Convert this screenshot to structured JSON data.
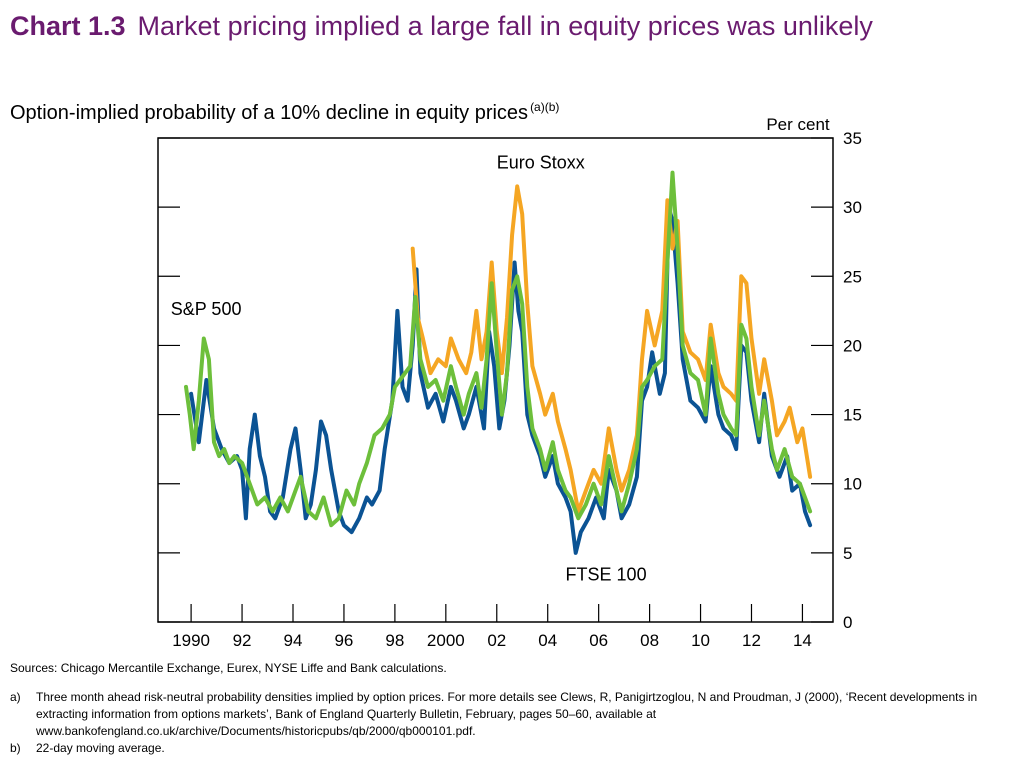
{
  "title": {
    "number": "Chart 1.3",
    "text": "Market pricing implied a large fall in equity prices was unlikely"
  },
  "subtitle": {
    "text": "Option-implied probability of a 10% decline in equity prices",
    "superscript": "(a)(b)"
  },
  "chart_data": {
    "type": "line",
    "ylabel": "Per cent",
    "ylim": [
      0,
      35
    ],
    "y_ticks": [
      "0",
      "5",
      "10",
      "15",
      "20",
      "25",
      "30",
      "35"
    ],
    "xlim": [
      1988.7,
      2015.2
    ],
    "x_ticks": [
      {
        "year": 1990,
        "label": "1990"
      },
      {
        "year": 1992,
        "label": "92"
      },
      {
        "year": 1994,
        "label": "94"
      },
      {
        "year": 1996,
        "label": "96"
      },
      {
        "year": 1998,
        "label": "98"
      },
      {
        "year": 2000,
        "label": "2000"
      },
      {
        "year": 2002,
        "label": "02"
      },
      {
        "year": 2004,
        "label": "04"
      },
      {
        "year": 2006,
        "label": "06"
      },
      {
        "year": 2008,
        "label": "08"
      },
      {
        "year": 2010,
        "label": "10"
      },
      {
        "year": 2012,
        "label": "12"
      },
      {
        "year": 2014,
        "label": "14"
      }
    ],
    "y_axis_side": "right",
    "grid": false,
    "series": [
      {
        "name": "FTSE 100",
        "color": "#0b5394",
        "points": [
          [
            1990.0,
            16.5
          ],
          [
            1990.3,
            13.0
          ],
          [
            1990.6,
            17.5
          ],
          [
            1990.9,
            14.0
          ],
          [
            1991.2,
            12.5
          ],
          [
            1991.5,
            11.5
          ],
          [
            1991.8,
            12.0
          ],
          [
            1992.0,
            11.0
          ],
          [
            1992.15,
            7.5
          ],
          [
            1992.3,
            12.5
          ],
          [
            1992.5,
            15.0
          ],
          [
            1992.7,
            12.0
          ],
          [
            1992.9,
            10.5
          ],
          [
            1993.1,
            8.0
          ],
          [
            1993.3,
            7.5
          ],
          [
            1993.6,
            9.0
          ],
          [
            1993.9,
            12.5
          ],
          [
            1994.1,
            14.0
          ],
          [
            1994.3,
            11.0
          ],
          [
            1994.5,
            7.5
          ],
          [
            1994.7,
            8.5
          ],
          [
            1994.9,
            11.0
          ],
          [
            1995.1,
            14.5
          ],
          [
            1995.3,
            13.5
          ],
          [
            1995.5,
            11.0
          ],
          [
            1995.8,
            8.0
          ],
          [
            1996.0,
            7.0
          ],
          [
            1996.3,
            6.5
          ],
          [
            1996.6,
            7.5
          ],
          [
            1996.9,
            9.0
          ],
          [
            1997.1,
            8.5
          ],
          [
            1997.4,
            9.5
          ],
          [
            1997.6,
            12.5
          ],
          [
            1997.9,
            16.0
          ],
          [
            1998.1,
            22.5
          ],
          [
            1998.3,
            17.0
          ],
          [
            1998.5,
            16.0
          ],
          [
            1998.7,
            20.0
          ],
          [
            1998.85,
            25.5
          ],
          [
            1999.0,
            18.0
          ],
          [
            1999.3,
            15.5
          ],
          [
            1999.6,
            16.5
          ],
          [
            1999.9,
            14.5
          ],
          [
            2000.2,
            17.0
          ],
          [
            2000.4,
            16.0
          ],
          [
            2000.7,
            14.0
          ],
          [
            2000.9,
            15.0
          ],
          [
            2001.2,
            17.0
          ],
          [
            2001.5,
            14.0
          ],
          [
            2001.7,
            21.0
          ],
          [
            2001.9,
            18.5
          ],
          [
            2002.1,
            14.0
          ],
          [
            2002.3,
            16.0
          ],
          [
            2002.5,
            20.0
          ],
          [
            2002.7,
            26.0
          ],
          [
            2002.85,
            22.5
          ],
          [
            2003.0,
            21.0
          ],
          [
            2003.2,
            15.0
          ],
          [
            2003.4,
            13.5
          ],
          [
            2003.7,
            12.0
          ],
          [
            2003.9,
            10.5
          ],
          [
            2004.2,
            12.0
          ],
          [
            2004.4,
            10.0
          ],
          [
            2004.7,
            9.0
          ],
          [
            2004.9,
            8.0
          ],
          [
            2005.1,
            5.0
          ],
          [
            2005.3,
            6.5
          ],
          [
            2005.6,
            7.5
          ],
          [
            2005.9,
            9.0
          ],
          [
            2006.2,
            7.5
          ],
          [
            2006.4,
            11.0
          ],
          [
            2006.7,
            9.5
          ],
          [
            2006.9,
            7.5
          ],
          [
            2007.2,
            8.5
          ],
          [
            2007.5,
            10.5
          ],
          [
            2007.7,
            16.0
          ],
          [
            2007.9,
            17.0
          ],
          [
            2008.1,
            19.5
          ],
          [
            2008.4,
            16.5
          ],
          [
            2008.6,
            18.0
          ],
          [
            2008.75,
            30.0
          ],
          [
            2008.9,
            29.0
          ],
          [
            2009.1,
            24.5
          ],
          [
            2009.3,
            19.0
          ],
          [
            2009.6,
            16.0
          ],
          [
            2009.9,
            15.5
          ],
          [
            2010.2,
            14.5
          ],
          [
            2010.4,
            18.5
          ],
          [
            2010.7,
            15.0
          ],
          [
            2010.9,
            14.0
          ],
          [
            2011.2,
            13.5
          ],
          [
            2011.4,
            12.5
          ],
          [
            2011.6,
            20.0
          ],
          [
            2011.8,
            19.5
          ],
          [
            2012.0,
            16.0
          ],
          [
            2012.3,
            13.0
          ],
          [
            2012.5,
            16.5
          ],
          [
            2012.8,
            12.0
          ],
          [
            2013.1,
            10.5
          ],
          [
            2013.4,
            12.0
          ],
          [
            2013.6,
            9.5
          ],
          [
            2013.9,
            10.0
          ],
          [
            2014.1,
            8.0
          ],
          [
            2014.3,
            7.0
          ]
        ]
      },
      {
        "name": "Euro Stoxx",
        "color": "#f5a623",
        "points": [
          [
            1998.7,
            27.0
          ],
          [
            1998.9,
            22.0
          ],
          [
            1999.1,
            20.5
          ],
          [
            1999.4,
            18.0
          ],
          [
            1999.7,
            19.0
          ],
          [
            2000.0,
            18.5
          ],
          [
            2000.2,
            20.5
          ],
          [
            2000.5,
            19.0
          ],
          [
            2000.8,
            18.0
          ],
          [
            2001.0,
            19.5
          ],
          [
            2001.2,
            22.5
          ],
          [
            2001.4,
            19.0
          ],
          [
            2001.6,
            21.0
          ],
          [
            2001.8,
            26.0
          ],
          [
            2002.0,
            21.0
          ],
          [
            2002.2,
            18.0
          ],
          [
            2002.4,
            22.0
          ],
          [
            2002.6,
            28.0
          ],
          [
            2002.8,
            31.5
          ],
          [
            2003.0,
            29.5
          ],
          [
            2003.2,
            23.0
          ],
          [
            2003.4,
            18.5
          ],
          [
            2003.7,
            16.5
          ],
          [
            2003.9,
            15.0
          ],
          [
            2004.2,
            16.5
          ],
          [
            2004.4,
            14.5
          ],
          [
            2004.7,
            12.5
          ],
          [
            2004.9,
            11.0
          ],
          [
            2005.2,
            8.0
          ],
          [
            2005.5,
            9.5
          ],
          [
            2005.8,
            11.0
          ],
          [
            2006.1,
            10.0
          ],
          [
            2006.4,
            14.0
          ],
          [
            2006.7,
            11.0
          ],
          [
            2006.9,
            9.5
          ],
          [
            2007.2,
            11.0
          ],
          [
            2007.5,
            13.5
          ],
          [
            2007.7,
            19.0
          ],
          [
            2007.9,
            22.5
          ],
          [
            2008.2,
            20.0
          ],
          [
            2008.5,
            22.5
          ],
          [
            2008.7,
            30.5
          ],
          [
            2008.9,
            27.0
          ],
          [
            2009.1,
            29.0
          ],
          [
            2009.3,
            21.0
          ],
          [
            2009.6,
            19.5
          ],
          [
            2009.9,
            19.0
          ],
          [
            2010.2,
            17.5
          ],
          [
            2010.4,
            21.5
          ],
          [
            2010.7,
            18.0
          ],
          [
            2010.9,
            17.0
          ],
          [
            2011.2,
            16.5
          ],
          [
            2011.4,
            16.0
          ],
          [
            2011.6,
            25.0
          ],
          [
            2011.8,
            24.5
          ],
          [
            2012.0,
            20.5
          ],
          [
            2012.3,
            16.5
          ],
          [
            2012.5,
            19.0
          ],
          [
            2012.8,
            16.0
          ],
          [
            2013.0,
            13.5
          ],
          [
            2013.3,
            14.5
          ],
          [
            2013.5,
            15.5
          ],
          [
            2013.8,
            13.0
          ],
          [
            2014.0,
            14.0
          ],
          [
            2014.3,
            10.5
          ]
        ]
      },
      {
        "name": "S&P 500",
        "color": "#6dbf3b",
        "points": [
          [
            1989.8,
            17.0
          ],
          [
            1989.95,
            15.0
          ],
          [
            1990.1,
            12.5
          ],
          [
            1990.3,
            16.0
          ],
          [
            1990.5,
            20.5
          ],
          [
            1990.7,
            19.0
          ],
          [
            1990.9,
            13.0
          ],
          [
            1991.1,
            12.0
          ],
          [
            1991.3,
            12.5
          ],
          [
            1991.5,
            11.5
          ],
          [
            1991.7,
            12.0
          ],
          [
            1992.0,
            11.5
          ],
          [
            1992.3,
            10.0
          ],
          [
            1992.6,
            8.5
          ],
          [
            1992.9,
            9.0
          ],
          [
            1993.2,
            8.0
          ],
          [
            1993.5,
            9.0
          ],
          [
            1993.8,
            8.0
          ],
          [
            1994.1,
            9.5
          ],
          [
            1994.3,
            10.5
          ],
          [
            1994.6,
            8.0
          ],
          [
            1994.9,
            7.5
          ],
          [
            1995.2,
            9.0
          ],
          [
            1995.5,
            7.0
          ],
          [
            1995.8,
            7.5
          ],
          [
            1996.1,
            9.5
          ],
          [
            1996.4,
            8.5
          ],
          [
            1996.6,
            10.0
          ],
          [
            1996.9,
            11.5
          ],
          [
            1997.2,
            13.5
          ],
          [
            1997.5,
            14.0
          ],
          [
            1997.8,
            15.0
          ],
          [
            1998.0,
            17.0
          ],
          [
            1998.2,
            17.5
          ],
          [
            1998.4,
            18.0
          ],
          [
            1998.6,
            18.5
          ],
          [
            1998.8,
            23.5
          ],
          [
            1999.0,
            19.0
          ],
          [
            1999.3,
            17.0
          ],
          [
            1999.6,
            17.5
          ],
          [
            1999.9,
            16.0
          ],
          [
            2000.2,
            18.5
          ],
          [
            2000.4,
            17.0
          ],
          [
            2000.7,
            15.0
          ],
          [
            2000.9,
            16.5
          ],
          [
            2001.2,
            18.0
          ],
          [
            2001.4,
            15.5
          ],
          [
            2001.6,
            19.0
          ],
          [
            2001.8,
            24.5
          ],
          [
            2002.0,
            19.5
          ],
          [
            2002.2,
            15.0
          ],
          [
            2002.4,
            18.0
          ],
          [
            2002.6,
            24.0
          ],
          [
            2002.8,
            25.0
          ],
          [
            2003.0,
            23.0
          ],
          [
            2003.2,
            17.0
          ],
          [
            2003.4,
            14.0
          ],
          [
            2003.7,
            12.5
          ],
          [
            2003.9,
            11.0
          ],
          [
            2004.2,
            13.0
          ],
          [
            2004.4,
            11.0
          ],
          [
            2004.7,
            9.5
          ],
          [
            2004.9,
            9.0
          ],
          [
            2005.2,
            7.5
          ],
          [
            2005.5,
            8.5
          ],
          [
            2005.8,
            10.0
          ],
          [
            2006.1,
            8.5
          ],
          [
            2006.4,
            12.0
          ],
          [
            2006.7,
            9.5
          ],
          [
            2006.9,
            8.0
          ],
          [
            2007.2,
            10.0
          ],
          [
            2007.5,
            12.5
          ],
          [
            2007.7,
            17.0
          ],
          [
            2007.9,
            17.5
          ],
          [
            2008.2,
            18.5
          ],
          [
            2008.5,
            19.0
          ],
          [
            2008.7,
            26.0
          ],
          [
            2008.9,
            32.5
          ],
          [
            2009.1,
            27.0
          ],
          [
            2009.3,
            20.0
          ],
          [
            2009.6,
            18.0
          ],
          [
            2009.9,
            17.5
          ],
          [
            2010.2,
            15.0
          ],
          [
            2010.4,
            20.5
          ],
          [
            2010.7,
            16.5
          ],
          [
            2010.9,
            15.0
          ],
          [
            2011.2,
            14.0
          ],
          [
            2011.4,
            13.5
          ],
          [
            2011.6,
            21.5
          ],
          [
            2011.8,
            20.5
          ],
          [
            2012.0,
            17.0
          ],
          [
            2012.3,
            13.5
          ],
          [
            2012.5,
            16.0
          ],
          [
            2012.8,
            12.5
          ],
          [
            2013.0,
            11.0
          ],
          [
            2013.3,
            12.5
          ],
          [
            2013.6,
            10.5
          ],
          [
            2013.9,
            10.0
          ],
          [
            2014.1,
            9.0
          ],
          [
            2014.3,
            8.0
          ]
        ]
      }
    ],
    "annotations": [
      {
        "text": "Euro Stoxx",
        "x": 2002.0,
        "y": 32.8
      },
      {
        "text": "S&P 500",
        "x": 1989.2,
        "y": 22.2
      },
      {
        "text": "FTSE 100",
        "x": 2004.7,
        "y": 3.0
      }
    ]
  },
  "notes": {
    "sources": "Sources:  Chicago Mercantile Exchange, Eurex, NYSE Liffe and Bank calculations.",
    "footnotes": [
      {
        "mark": "a)",
        "text": "Three month ahead risk-neutral probability densities implied by option prices.  For more details see Clews, R, Panigirtzoglou, N and Proudman, J (2000), ‘Recent developments in extracting information from options markets’, Bank of England Quarterly Bulletin, February, pages 50–60, available at www.bankofengland.co.uk/archive/Documents/historicpubs/qb/2000/qb000101.pdf."
      },
      {
        "mark": "b)",
        "text": "22-day moving average."
      }
    ]
  }
}
